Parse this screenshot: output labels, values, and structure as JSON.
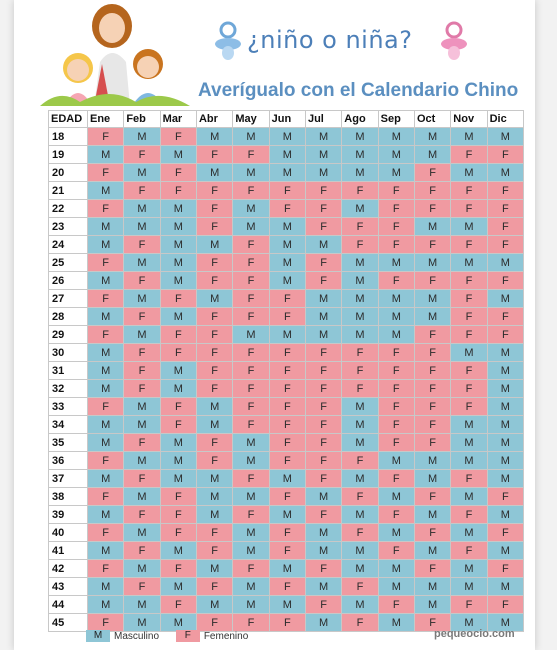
{
  "header": {
    "brand_text": "¿niño o niña?",
    "title": "Averígualo con el Calendario Chino"
  },
  "table": {
    "age_header": "EDAD",
    "months": [
      "Ene",
      "Feb",
      "Mar",
      "Abr",
      "May",
      "Jun",
      "Jul",
      "Ago",
      "Sep",
      "Oct",
      "Nov",
      "Dic"
    ],
    "rows": [
      {
        "age": "18",
        "cells": [
          "F",
          "M",
          "F",
          "M",
          "M",
          "M",
          "M",
          "M",
          "M",
          "M",
          "M",
          "M"
        ]
      },
      {
        "age": "19",
        "cells": [
          "M",
          "F",
          "M",
          "F",
          "F",
          "M",
          "M",
          "M",
          "M",
          "M",
          "F",
          "F"
        ]
      },
      {
        "age": "20",
        "cells": [
          "F",
          "M",
          "F",
          "M",
          "M",
          "M",
          "M",
          "M",
          "M",
          "F",
          "M",
          "M"
        ]
      },
      {
        "age": "21",
        "cells": [
          "M",
          "F",
          "F",
          "F",
          "F",
          "F",
          "F",
          "F",
          "F",
          "F",
          "F",
          "F"
        ]
      },
      {
        "age": "22",
        "cells": [
          "F",
          "M",
          "M",
          "F",
          "M",
          "F",
          "F",
          "M",
          "F",
          "F",
          "F",
          "F"
        ]
      },
      {
        "age": "23",
        "cells": [
          "M",
          "M",
          "M",
          "F",
          "M",
          "M",
          "F",
          "F",
          "F",
          "M",
          "M",
          "F"
        ]
      },
      {
        "age": "24",
        "cells": [
          "M",
          "F",
          "M",
          "M",
          "F",
          "M",
          "M",
          "F",
          "F",
          "F",
          "F",
          "F"
        ]
      },
      {
        "age": "25",
        "cells": [
          "F",
          "M",
          "M",
          "F",
          "F",
          "M",
          "F",
          "M",
          "M",
          "M",
          "M",
          "M"
        ]
      },
      {
        "age": "26",
        "cells": [
          "M",
          "F",
          "M",
          "F",
          "F",
          "M",
          "F",
          "M",
          "F",
          "F",
          "F",
          "F"
        ]
      },
      {
        "age": "27",
        "cells": [
          "F",
          "M",
          "F",
          "M",
          "F",
          "F",
          "M",
          "M",
          "M",
          "M",
          "F",
          "M"
        ]
      },
      {
        "age": "28",
        "cells": [
          "M",
          "F",
          "M",
          "F",
          "F",
          "F",
          "M",
          "M",
          "M",
          "M",
          "F",
          "F"
        ]
      },
      {
        "age": "29",
        "cells": [
          "F",
          "M",
          "F",
          "F",
          "M",
          "M",
          "M",
          "M",
          "M",
          "F",
          "F",
          "F"
        ]
      },
      {
        "age": "30",
        "cells": [
          "M",
          "F",
          "F",
          "F",
          "F",
          "F",
          "F",
          "F",
          "F",
          "F",
          "M",
          "M"
        ]
      },
      {
        "age": "31",
        "cells": [
          "M",
          "F",
          "M",
          "F",
          "F",
          "F",
          "F",
          "F",
          "F",
          "F",
          "F",
          "M"
        ]
      },
      {
        "age": "32",
        "cells": [
          "M",
          "F",
          "M",
          "F",
          "F",
          "F",
          "F",
          "F",
          "F",
          "F",
          "F",
          "M"
        ]
      },
      {
        "age": "33",
        "cells": [
          "F",
          "M",
          "F",
          "M",
          "F",
          "F",
          "F",
          "M",
          "F",
          "F",
          "F",
          "M"
        ]
      },
      {
        "age": "34",
        "cells": [
          "M",
          "M",
          "F",
          "M",
          "F",
          "F",
          "F",
          "M",
          "F",
          "F",
          "M",
          "M"
        ]
      },
      {
        "age": "35",
        "cells": [
          "M",
          "F",
          "M",
          "F",
          "M",
          "F",
          "F",
          "M",
          "F",
          "F",
          "M",
          "M"
        ]
      },
      {
        "age": "36",
        "cells": [
          "F",
          "M",
          "M",
          "F",
          "M",
          "F",
          "F",
          "F",
          "M",
          "M",
          "M",
          "M"
        ]
      },
      {
        "age": "37",
        "cells": [
          "M",
          "F",
          "M",
          "M",
          "F",
          "M",
          "F",
          "M",
          "F",
          "M",
          "F",
          "M"
        ]
      },
      {
        "age": "38",
        "cells": [
          "F",
          "M",
          "F",
          "M",
          "M",
          "F",
          "M",
          "F",
          "M",
          "F",
          "M",
          "F"
        ]
      },
      {
        "age": "39",
        "cells": [
          "M",
          "F",
          "F",
          "M",
          "F",
          "M",
          "F",
          "M",
          "F",
          "M",
          "F",
          "M"
        ]
      },
      {
        "age": "40",
        "cells": [
          "F",
          "M",
          "F",
          "F",
          "M",
          "F",
          "M",
          "F",
          "M",
          "F",
          "M",
          "F"
        ]
      },
      {
        "age": "41",
        "cells": [
          "M",
          "F",
          "M",
          "F",
          "M",
          "F",
          "M",
          "M",
          "F",
          "M",
          "F",
          "M"
        ]
      },
      {
        "age": "42",
        "cells": [
          "F",
          "M",
          "F",
          "M",
          "F",
          "M",
          "F",
          "M",
          "M",
          "F",
          "M",
          "F"
        ]
      },
      {
        "age": "43",
        "cells": [
          "M",
          "F",
          "M",
          "F",
          "M",
          "F",
          "M",
          "F",
          "M",
          "M",
          "M",
          "M"
        ]
      },
      {
        "age": "44",
        "cells": [
          "M",
          "M",
          "F",
          "M",
          "M",
          "M",
          "F",
          "M",
          "F",
          "M",
          "F",
          "F"
        ]
      },
      {
        "age": "45",
        "cells": [
          "F",
          "M",
          "M",
          "F",
          "F",
          "F",
          "M",
          "F",
          "M",
          "F",
          "M",
          "M"
        ]
      }
    ]
  },
  "legend": [
    {
      "code": "M",
      "label": "Masculino",
      "color": "#8ec6d6"
    },
    {
      "code": "F",
      "label": "Femenino",
      "color": "#f09aa1"
    }
  ],
  "footer": {
    "site": "pequeocio.com"
  }
}
